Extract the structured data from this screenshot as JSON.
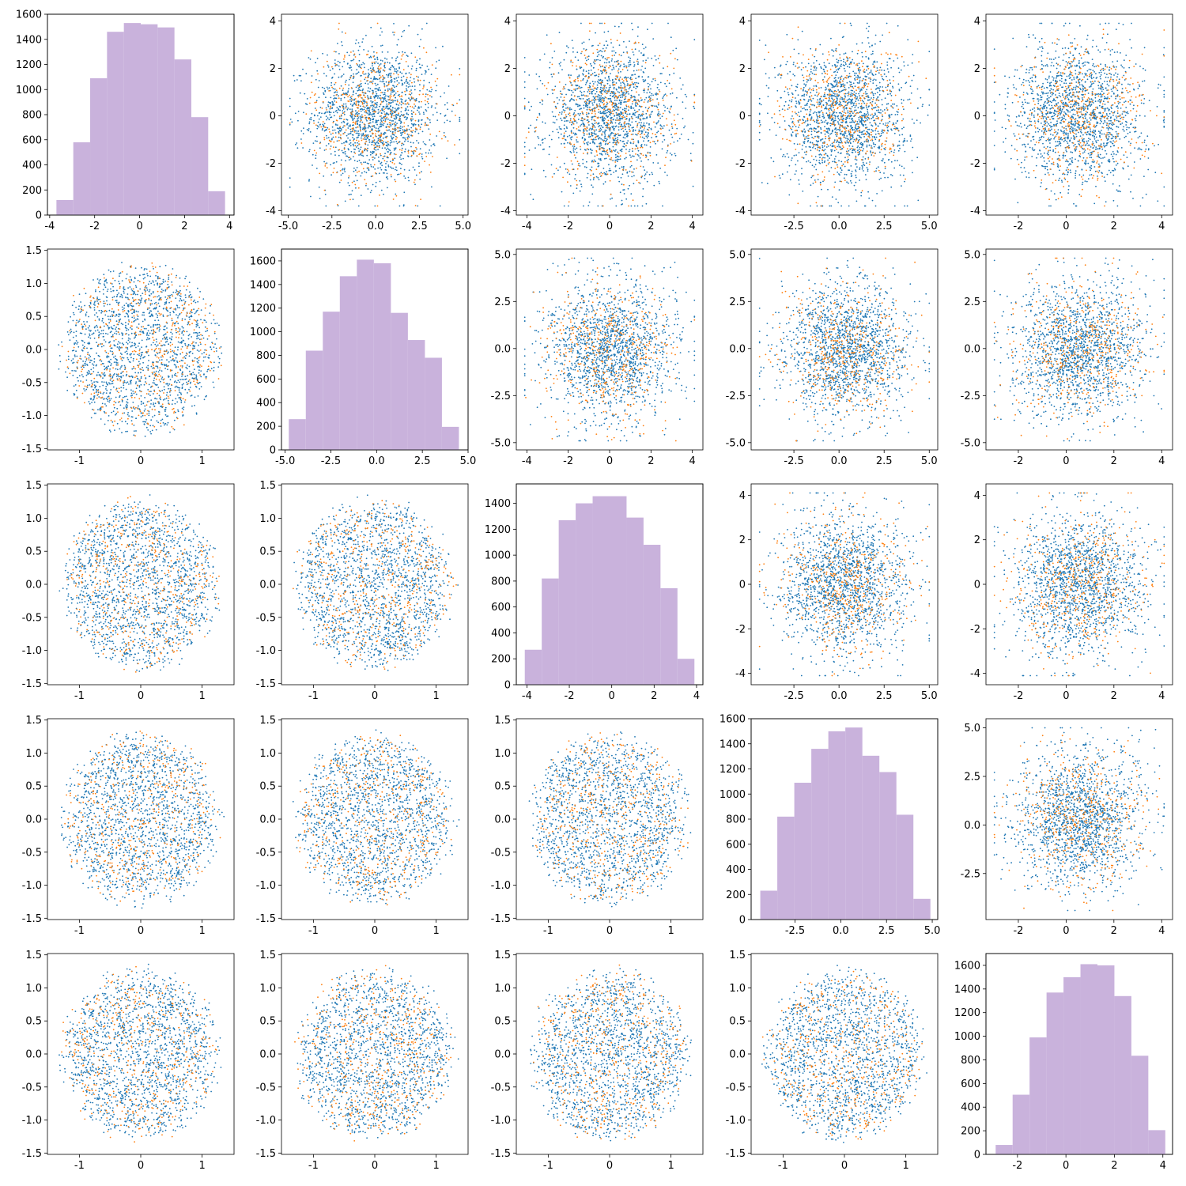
{
  "style": {
    "hist_color": "#c9b2dc",
    "scatter_colors": [
      "#1f77b4",
      "#ff7f0e"
    ],
    "axis_color": "#000000",
    "background": "#ffffff"
  },
  "chart_data": {
    "type": "scatter-matrix",
    "rows": 5,
    "cols": 5,
    "variables": [
      {
        "range": [
          -3.8,
          3.9
        ],
        "ticks": [
          "-4",
          "-2",
          "0",
          "2",
          "4"
        ],
        "tick_values": [
          -4,
          -2,
          0,
          2,
          4
        ],
        "spread": 1.45
      },
      {
        "range": [
          -4.9,
          4.8
        ],
        "ticks": [
          "-5.0",
          "-2.5",
          "0.0",
          "2.5",
          "5.0"
        ],
        "tick_values": [
          -5,
          -2.5,
          0,
          2.5,
          5
        ],
        "spread": 1.8
      },
      {
        "range": [
          -4.1,
          4.1
        ],
        "ticks": [
          "-4",
          "-2",
          "0",
          "2",
          "4"
        ],
        "tick_values": [
          -4,
          -2,
          0,
          2,
          4
        ],
        "spread": 1.55
      },
      {
        "range": [
          -4.4,
          5.0
        ],
        "ticks": [
          "-2.5",
          "0.0",
          "2.5",
          "5.0"
        ],
        "tick_values": [
          -2.5,
          0,
          2.5,
          5
        ],
        "spread": 1.75
      },
      {
        "range": [
          -3.0,
          4.1
        ],
        "ticks": [
          "-2",
          "0",
          "2",
          "4"
        ],
        "tick_values": [
          -2,
          0,
          2,
          4
        ],
        "spread": 1.35
      }
    ],
    "lower_xy": {
      "range": [
        -1.45,
        1.45
      ],
      "x_ticks": [
        "-1",
        "0",
        "1"
      ],
      "x_tick_values": [
        -1,
        0,
        1
      ],
      "y_ticks": [
        "-1.5",
        "-1.0",
        "-0.5",
        "0.0",
        "0.5",
        "1.0",
        "1.5"
      ],
      "y_tick_values": [
        -1.5,
        -1,
        -0.5,
        0,
        0.5,
        1,
        1.5
      ],
      "radius": 1.38
    },
    "diagonal_histograms": [
      {
        "edges": [
          -3.7,
          -2.95,
          -2.2,
          -1.45,
          -0.7,
          0.05,
          0.8,
          1.55,
          2.3,
          3.05,
          3.8
        ],
        "counts": [
          120,
          580,
          1090,
          1460,
          1530,
          1520,
          1495,
          1240,
          780,
          190
        ],
        "xlim": [
          -4.1,
          4.2
        ],
        "ylim": [
          0,
          1600
        ],
        "y_ticks": [
          "0",
          "200",
          "400",
          "600",
          "800",
          "1000",
          "1200",
          "1400",
          "1600"
        ],
        "y_tick_values": [
          0,
          200,
          400,
          600,
          800,
          1000,
          1200,
          1400,
          1600
        ]
      },
      {
        "edges": [
          -4.8,
          -3.87,
          -2.94,
          -2.01,
          -1.08,
          -0.15,
          0.78,
          1.71,
          2.64,
          3.57,
          4.5
        ],
        "counts": [
          260,
          840,
          1170,
          1470,
          1610,
          1580,
          1160,
          930,
          780,
          195
        ],
        "xlim": [
          -5.2,
          5.0
        ],
        "ylim": [
          0,
          1700
        ],
        "y_ticks": [
          "0",
          "200",
          "400",
          "600",
          "800",
          "1000",
          "1200",
          "1400",
          "1600"
        ],
        "y_tick_values": [
          0,
          200,
          400,
          600,
          800,
          1000,
          1200,
          1400,
          1600
        ]
      },
      {
        "edges": [
          -4.1,
          -3.3,
          -2.5,
          -1.7,
          -0.9,
          -0.1,
          0.7,
          1.5,
          2.3,
          3.1,
          3.9
        ],
        "counts": [
          270,
          820,
          1270,
          1400,
          1455,
          1455,
          1290,
          1080,
          745,
          200
        ],
        "xlim": [
          -4.5,
          4.3
        ],
        "ylim": [
          0,
          1550
        ],
        "y_ticks": [
          "0",
          "200",
          "400",
          "600",
          "800",
          "1000",
          "1200",
          "1400"
        ],
        "y_tick_values": [
          0,
          200,
          400,
          600,
          800,
          1000,
          1200,
          1400
        ]
      },
      {
        "edges": [
          -4.4,
          -3.47,
          -2.54,
          -1.61,
          -0.68,
          0.25,
          1.18,
          2.11,
          3.04,
          3.97,
          4.9
        ],
        "counts": [
          230,
          820,
          1090,
          1360,
          1500,
          1530,
          1305,
          1175,
          835,
          165
        ],
        "xlim": [
          -4.9,
          5.3
        ],
        "ylim": [
          0,
          1600
        ],
        "y_ticks": [
          "0",
          "200",
          "400",
          "600",
          "800",
          "1000",
          "1200",
          "1400",
          "1600"
        ],
        "y_tick_values": [
          0,
          200,
          400,
          600,
          800,
          1000,
          1200,
          1400,
          1600
        ]
      },
      {
        "edges": [
          -2.9,
          -2.2,
          -1.5,
          -0.8,
          -0.1,
          0.6,
          1.3,
          2.0,
          2.7,
          3.4,
          4.1
        ],
        "counts": [
          80,
          505,
          990,
          1370,
          1500,
          1610,
          1600,
          1340,
          835,
          205
        ],
        "xlim": [
          -3.3,
          4.4
        ],
        "ylim": [
          0,
          1700
        ],
        "y_ticks": [
          "0",
          "200",
          "400",
          "600",
          "800",
          "1000",
          "1200",
          "1400",
          "1600"
        ],
        "y_tick_values": [
          0,
          200,
          400,
          600,
          800,
          1000,
          1200,
          1400,
          1600
        ]
      }
    ],
    "series": [
      {
        "color": "#1f77b4",
        "points_per_panel": 1600
      },
      {
        "color": "#ff7f0e",
        "points_per_panel": 450
      }
    ]
  }
}
